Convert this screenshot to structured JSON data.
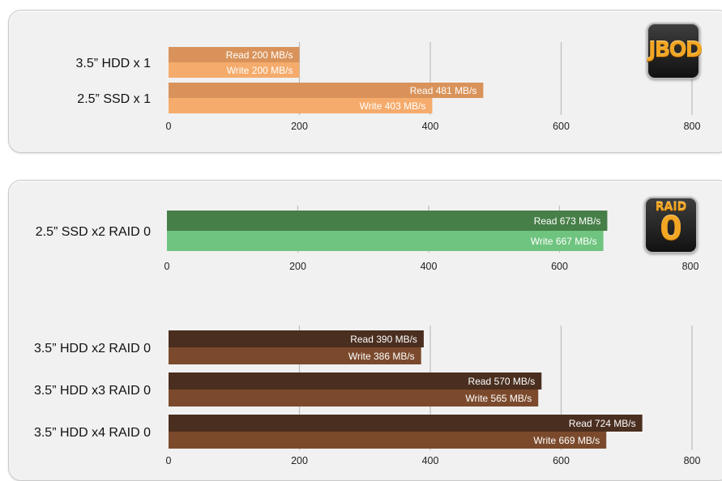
{
  "badges": {
    "jbod": "JBOD",
    "raid_top": "RAID",
    "raid_bottom": "0"
  },
  "chart_data": [
    {
      "type": "bar",
      "orientation": "horizontal",
      "group": "JBOD",
      "categories": [
        "3.5” HDD x 1",
        "2.5” SSD x 1"
      ],
      "series": [
        {
          "name": "Read",
          "values": [
            200,
            481
          ],
          "labels": [
            "Read 200 MB/s",
            "Read 481 MB/s"
          ],
          "color": "#d9935a"
        },
        {
          "name": "Write",
          "values": [
            200,
            403
          ],
          "labels": [
            "Write 200 MB/s",
            "Write 403 MB/s"
          ],
          "color": "#f5ab6b"
        }
      ],
      "xlim": [
        0,
        800
      ],
      "xticks": [
        0,
        200,
        400,
        600,
        800
      ],
      "grid": true
    },
    {
      "type": "bar",
      "orientation": "horizontal",
      "group": "RAID 0",
      "categories": [
        "2.5” SSD x2 RAID 0"
      ],
      "series": [
        {
          "name": "Read",
          "values": [
            673
          ],
          "labels": [
            "Read 673 MB/s"
          ],
          "color": "#467f48"
        },
        {
          "name": "Write",
          "values": [
            667
          ],
          "labels": [
            "Write 667 MB/s"
          ],
          "color": "#6fc47f"
        }
      ],
      "xlim": [
        0,
        800
      ],
      "xticks": [
        0,
        200,
        400,
        600,
        800
      ],
      "grid": true
    },
    {
      "type": "bar",
      "orientation": "horizontal",
      "group": "RAID 0",
      "categories": [
        "3.5” HDD x2 RAID 0",
        "3.5” HDD x3 RAID 0",
        "3.5” HDD x4 RAID 0"
      ],
      "series": [
        {
          "name": "Read",
          "values": [
            390,
            570,
            724
          ],
          "labels": [
            "Read 390 MB/s",
            "Read 570 MB/s",
            "Read 724 MB/s"
          ],
          "color": "#4a2e1f"
        },
        {
          "name": "Write",
          "values": [
            386,
            565,
            669
          ],
          "labels": [
            "Write 386 MB/s",
            "Write 565 MB/s",
            "Write 669 MB/s"
          ],
          "color": "#7b4a2c"
        }
      ],
      "xlim": [
        0,
        800
      ],
      "xticks": [
        0,
        200,
        400,
        600,
        800
      ],
      "grid": true
    }
  ]
}
